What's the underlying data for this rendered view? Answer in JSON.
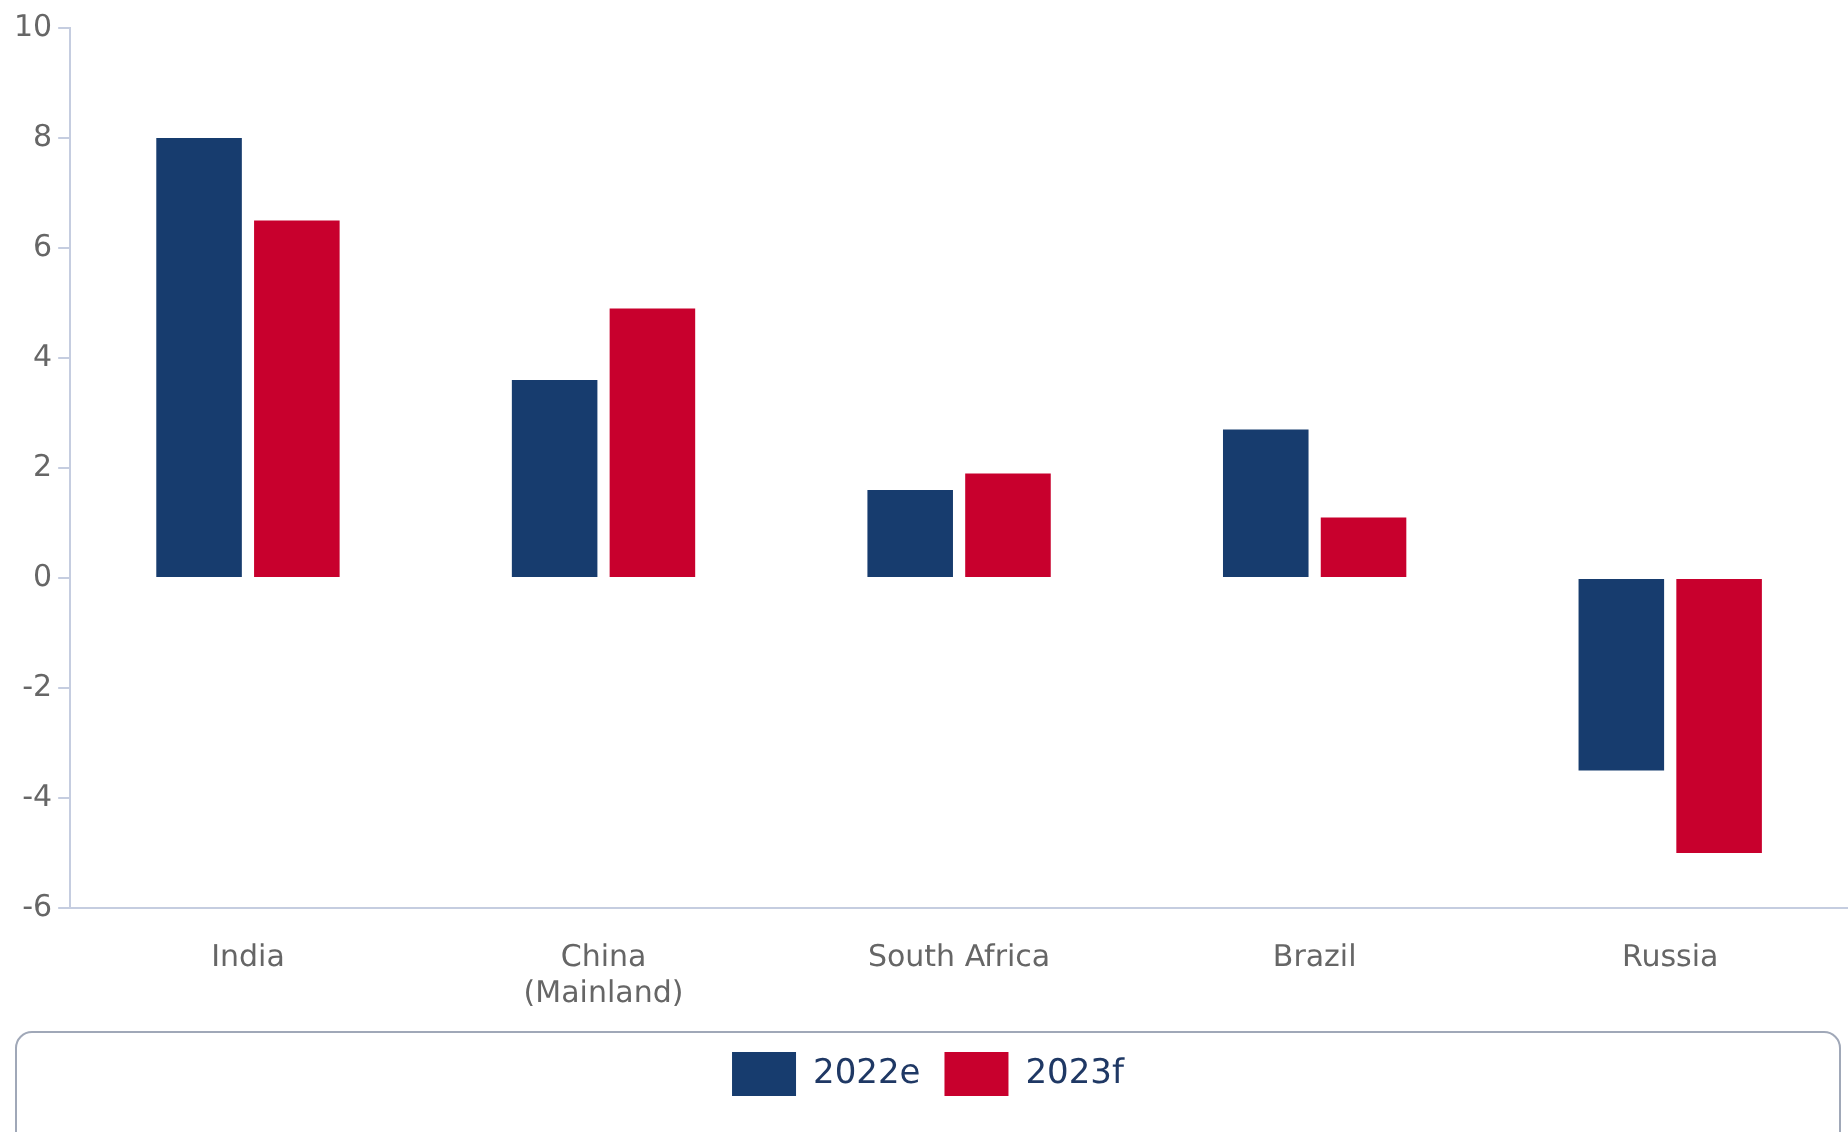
{
  "chart_data": {
    "type": "bar",
    "categories": [
      "India",
      "China (Mainland)",
      "South Africa",
      "Brazil",
      "Russia"
    ],
    "series": [
      {
        "name": "2022e",
        "color": "#173c6e",
        "values": [
          8.0,
          3.6,
          1.6,
          2.7,
          -3.5
        ]
      },
      {
        "name": "2023f",
        "color": "#c8002d",
        "values": [
          6.5,
          4.9,
          1.9,
          1.1,
          -5.0
        ]
      }
    ],
    "ylim": [
      -6,
      10
    ],
    "yticks": [
      -6,
      -4,
      -2,
      0,
      2,
      4,
      6,
      8,
      10
    ],
    "grid": false,
    "legend": "bottom"
  }
}
